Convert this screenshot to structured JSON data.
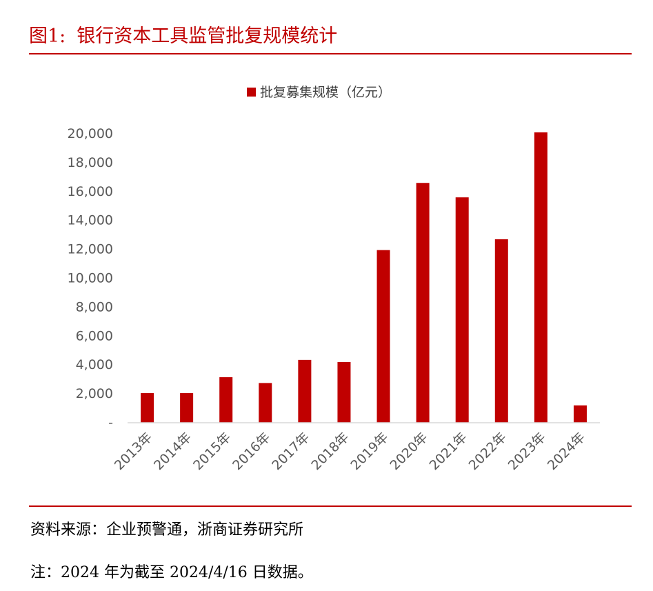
{
  "header": {
    "figure_number": "图1:",
    "title": "银行资本工具监管批复规模统计"
  },
  "chart_data": {
    "type": "bar",
    "title": "",
    "xlabel": "",
    "ylabel": "",
    "categories": [
      "2013年",
      "2014年",
      "2015年",
      "2016年",
      "2017年",
      "2018年",
      "2019年",
      "2020年",
      "2021年",
      "2022年",
      "2023年",
      "2024年"
    ],
    "series": [
      {
        "name": "批复募集规模（亿元）",
        "values": [
          2050,
          2050,
          3150,
          2750,
          4350,
          4200,
          11950,
          16600,
          15600,
          12700,
          20100,
          1200
        ],
        "color": "#c00000"
      }
    ],
    "ylim": [
      0,
      20000
    ],
    "y_ticks": [
      0,
      2000,
      4000,
      6000,
      8000,
      10000,
      12000,
      14000,
      16000,
      18000,
      20000
    ],
    "y_tick_labels": [
      "-",
      "2,000",
      "4,000",
      "6,000",
      "8,000",
      "10,000",
      "12,000",
      "14,000",
      "16,000",
      "18,000",
      "20,000"
    ],
    "legend_position": "top-center",
    "grid": false
  },
  "footer": {
    "source": "资料来源：企业预警通，浙商证券研究所",
    "note": "注：2024 年为截至 2024/4/16 日数据。"
  },
  "colors": {
    "accent": "#c00000",
    "axis": "#d9d9d9",
    "tick_text": "#595959"
  }
}
